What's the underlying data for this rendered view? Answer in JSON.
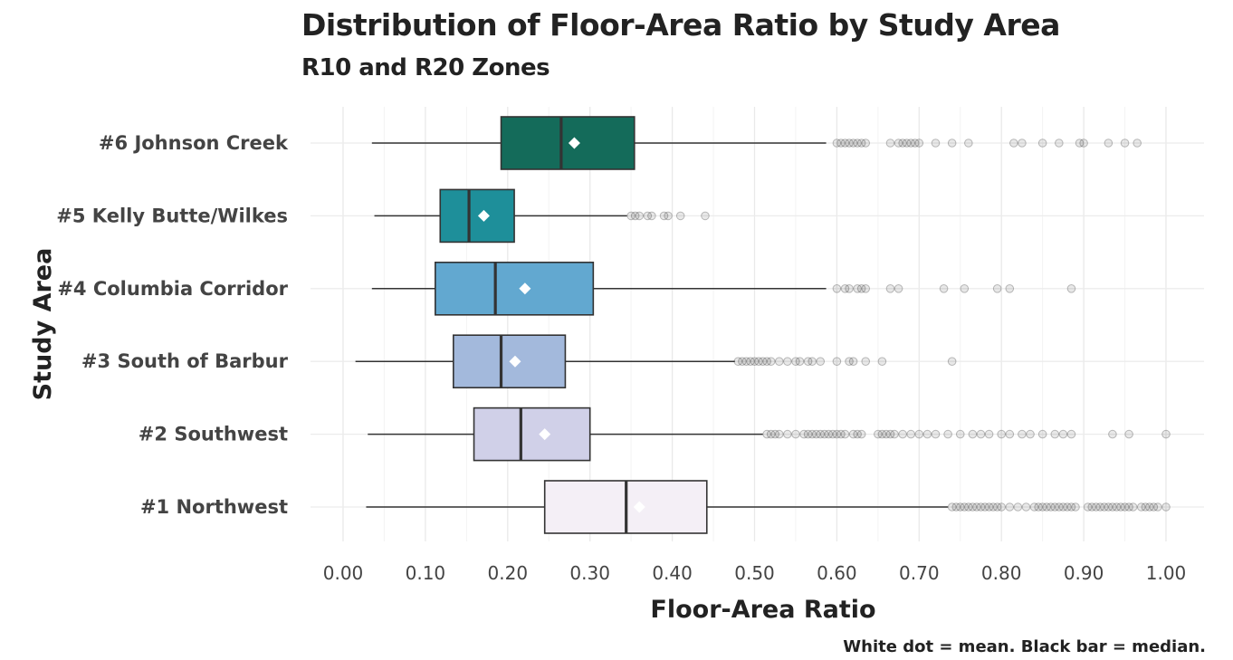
{
  "title": "Distribution of Floor-Area Ratio by Study Area",
  "subtitle": "R10 and R20 Zones",
  "caption": "White dot = mean. Black bar = median.",
  "chart_data": {
    "type": "boxplot",
    "orientation": "horizontal",
    "xlabel": "Floor-Area Ratio",
    "ylabel": "Study Area",
    "xlim": [
      0.0,
      1.0
    ],
    "x_ticks": [
      "0.00",
      "0.10",
      "0.20",
      "0.30",
      "0.40",
      "0.50",
      "0.60",
      "0.70",
      "0.80",
      "0.90",
      "1.00"
    ],
    "grid": true,
    "legend": "none",
    "categories": [
      {
        "label": "#6 Johnson Creek",
        "color": "#146b5a",
        "whisker_low": 0.035,
        "q1": 0.192,
        "median": 0.265,
        "q3": 0.354,
        "whisker_high": 0.587,
        "mean": 0.281,
        "outliers": [
          0.6,
          0.605,
          0.61,
          0.615,
          0.62,
          0.625,
          0.63,
          0.635,
          0.665,
          0.675,
          0.68,
          0.685,
          0.69,
          0.695,
          0.7,
          0.72,
          0.74,
          0.76,
          0.815,
          0.825,
          0.85,
          0.87,
          0.895,
          0.9,
          0.93,
          0.95,
          0.965
        ]
      },
      {
        "label": "#5 Kelly Butte/Wilkes",
        "color": "#1e8f9a",
        "whisker_low": 0.038,
        "q1": 0.118,
        "median": 0.153,
        "q3": 0.208,
        "whisker_high": 0.345,
        "mean": 0.171,
        "outliers": [
          0.35,
          0.355,
          0.36,
          0.37,
          0.375,
          0.39,
          0.395,
          0.41,
          0.44
        ]
      },
      {
        "label": "#4 Columbia Corridor",
        "color": "#62a8d0",
        "whisker_low": 0.035,
        "q1": 0.112,
        "median": 0.185,
        "q3": 0.304,
        "whisker_high": 0.587,
        "mean": 0.221,
        "outliers": [
          0.6,
          0.61,
          0.615,
          0.625,
          0.63,
          0.635,
          0.665,
          0.675,
          0.73,
          0.755,
          0.795,
          0.81,
          0.885
        ]
      },
      {
        "label": "#3 South of Barbur",
        "color": "#a3b9dc",
        "whisker_low": 0.015,
        "q1": 0.134,
        "median": 0.192,
        "q3": 0.27,
        "whisker_high": 0.476,
        "mean": 0.209,
        "outliers": [
          0.48,
          0.485,
          0.49,
          0.495,
          0.5,
          0.505,
          0.51,
          0.515,
          0.52,
          0.53,
          0.54,
          0.55,
          0.555,
          0.565,
          0.57,
          0.58,
          0.6,
          0.615,
          0.62,
          0.635,
          0.655,
          0.74
        ]
      },
      {
        "label": "#2 Southwest",
        "color": "#d0d0e8",
        "whisker_low": 0.03,
        "q1": 0.159,
        "median": 0.216,
        "q3": 0.3,
        "whisker_high": 0.51,
        "mean": 0.245,
        "outliers": [
          0.515,
          0.52,
          0.525,
          0.53,
          0.54,
          0.55,
          0.56,
          0.565,
          0.57,
          0.575,
          0.58,
          0.585,
          0.59,
          0.595,
          0.6,
          0.605,
          0.61,
          0.62,
          0.625,
          0.63,
          0.65,
          0.655,
          0.66,
          0.665,
          0.67,
          0.68,
          0.69,
          0.7,
          0.71,
          0.72,
          0.735,
          0.75,
          0.765,
          0.775,
          0.785,
          0.8,
          0.81,
          0.825,
          0.835,
          0.85,
          0.865,
          0.875,
          0.885,
          0.935,
          0.955,
          1.0
        ]
      },
      {
        "label": "#1 Northwest",
        "color": "#f4eff6",
        "whisker_low": 0.028,
        "q1": 0.245,
        "median": 0.344,
        "q3": 0.442,
        "whisker_high": 0.735,
        "mean": 0.36,
        "outliers": [
          0.74,
          0.745,
          0.75,
          0.755,
          0.76,
          0.765,
          0.77,
          0.775,
          0.78,
          0.785,
          0.79,
          0.795,
          0.8,
          0.81,
          0.82,
          0.83,
          0.84,
          0.845,
          0.85,
          0.855,
          0.86,
          0.865,
          0.87,
          0.875,
          0.88,
          0.885,
          0.89,
          0.905,
          0.91,
          0.915,
          0.92,
          0.925,
          0.93,
          0.935,
          0.94,
          0.945,
          0.95,
          0.955,
          0.96,
          0.97,
          0.975,
          0.98,
          0.985,
          0.99,
          1.0
        ]
      }
    ]
  }
}
